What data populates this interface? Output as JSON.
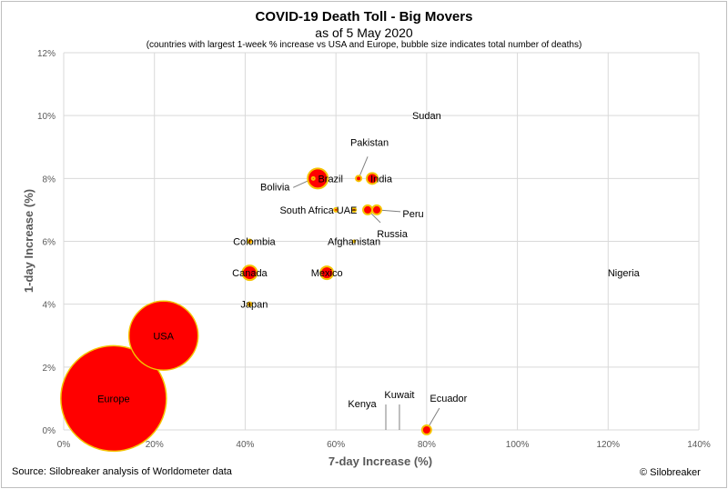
{
  "header": {
    "title": "COVID-19 Death Toll - Big Movers",
    "subtitle": "as of 5 May 2020",
    "note": "(countries with largest 1-week % increase vs USA and Europe, bubble size indicates total number of deaths)"
  },
  "footer": {
    "source": "Source: Silobreaker analysis of Worldometer data",
    "copyright": "© Silobreaker"
  },
  "colors": {
    "bubble_fill": "#ff0000",
    "bubble_stroke": "#f5c400",
    "grid": "#d9d9d9",
    "leader": "#7f7f7f"
  },
  "chart_data": {
    "type": "scatter",
    "title": "COVID-19 Death Toll - Big Movers",
    "subtitle": "as of 5 May 2020",
    "xlabel": "7-day Increase (%)",
    "ylabel": "1-day Increase (%)",
    "xlim": [
      0,
      140
    ],
    "ylim": [
      0,
      12
    ],
    "xticks": [
      "0%",
      "20%",
      "40%",
      "60%",
      "80%",
      "100%",
      "120%",
      "140%"
    ],
    "yticks": [
      "0%",
      "2%",
      "4%",
      "6%",
      "8%",
      "10%",
      "12%"
    ],
    "grid": true,
    "bubble_size": "total number of deaths",
    "points": [
      {
        "label": "Europe",
        "x": 11,
        "y": 1.0,
        "r": 58
      },
      {
        "label": "USA",
        "x": 22,
        "y": 3.0,
        "r": 38
      },
      {
        "label": "Brazil",
        "x": 56,
        "y": 8.0,
        "r": 11
      },
      {
        "label": "Canada",
        "x": 41,
        "y": 5.0,
        "r": 8
      },
      {
        "label": "Mexico",
        "x": 58,
        "y": 5.0,
        "r": 7
      },
      {
        "label": "India",
        "x": 68,
        "y": 8.0,
        "r": 6
      },
      {
        "label": "Peru",
        "x": 69,
        "y": 7.0,
        "r": 5
      },
      {
        "label": "Russia",
        "x": 67,
        "y": 7.0,
        "r": 5
      },
      {
        "label": "Ecuador",
        "x": 80,
        "y": 0.0,
        "r": 5
      },
      {
        "label": "Pakistan",
        "x": 65,
        "y": 8.0,
        "r": 3
      },
      {
        "label": "UAE",
        "x": 64,
        "y": 7.0,
        "r": 2
      },
      {
        "label": "South Africa",
        "x": 60,
        "y": 7.0,
        "r": 2
      },
      {
        "label": "Bolivia",
        "x": 55,
        "y": 8.0,
        "r": 1.5
      },
      {
        "label": "Colombia",
        "x": 41,
        "y": 6.0,
        "r": 2
      },
      {
        "label": "Japan",
        "x": 41,
        "y": 4.0,
        "r": 2
      },
      {
        "label": "Afghanistan",
        "x": 64,
        "y": 6.0,
        "r": 1
      },
      {
        "label": "Sudan",
        "x": 80,
        "y": 10.0,
        "r": 0.5
      },
      {
        "label": "Nigeria",
        "x": 120,
        "y": 5.0,
        "r": 0.5
      },
      {
        "label": "Kenya",
        "x": 71,
        "y": 0.0,
        "r": 0.5
      },
      {
        "label": "Kuwait",
        "x": 74,
        "y": 0.0,
        "r": 0.5
      }
    ]
  }
}
